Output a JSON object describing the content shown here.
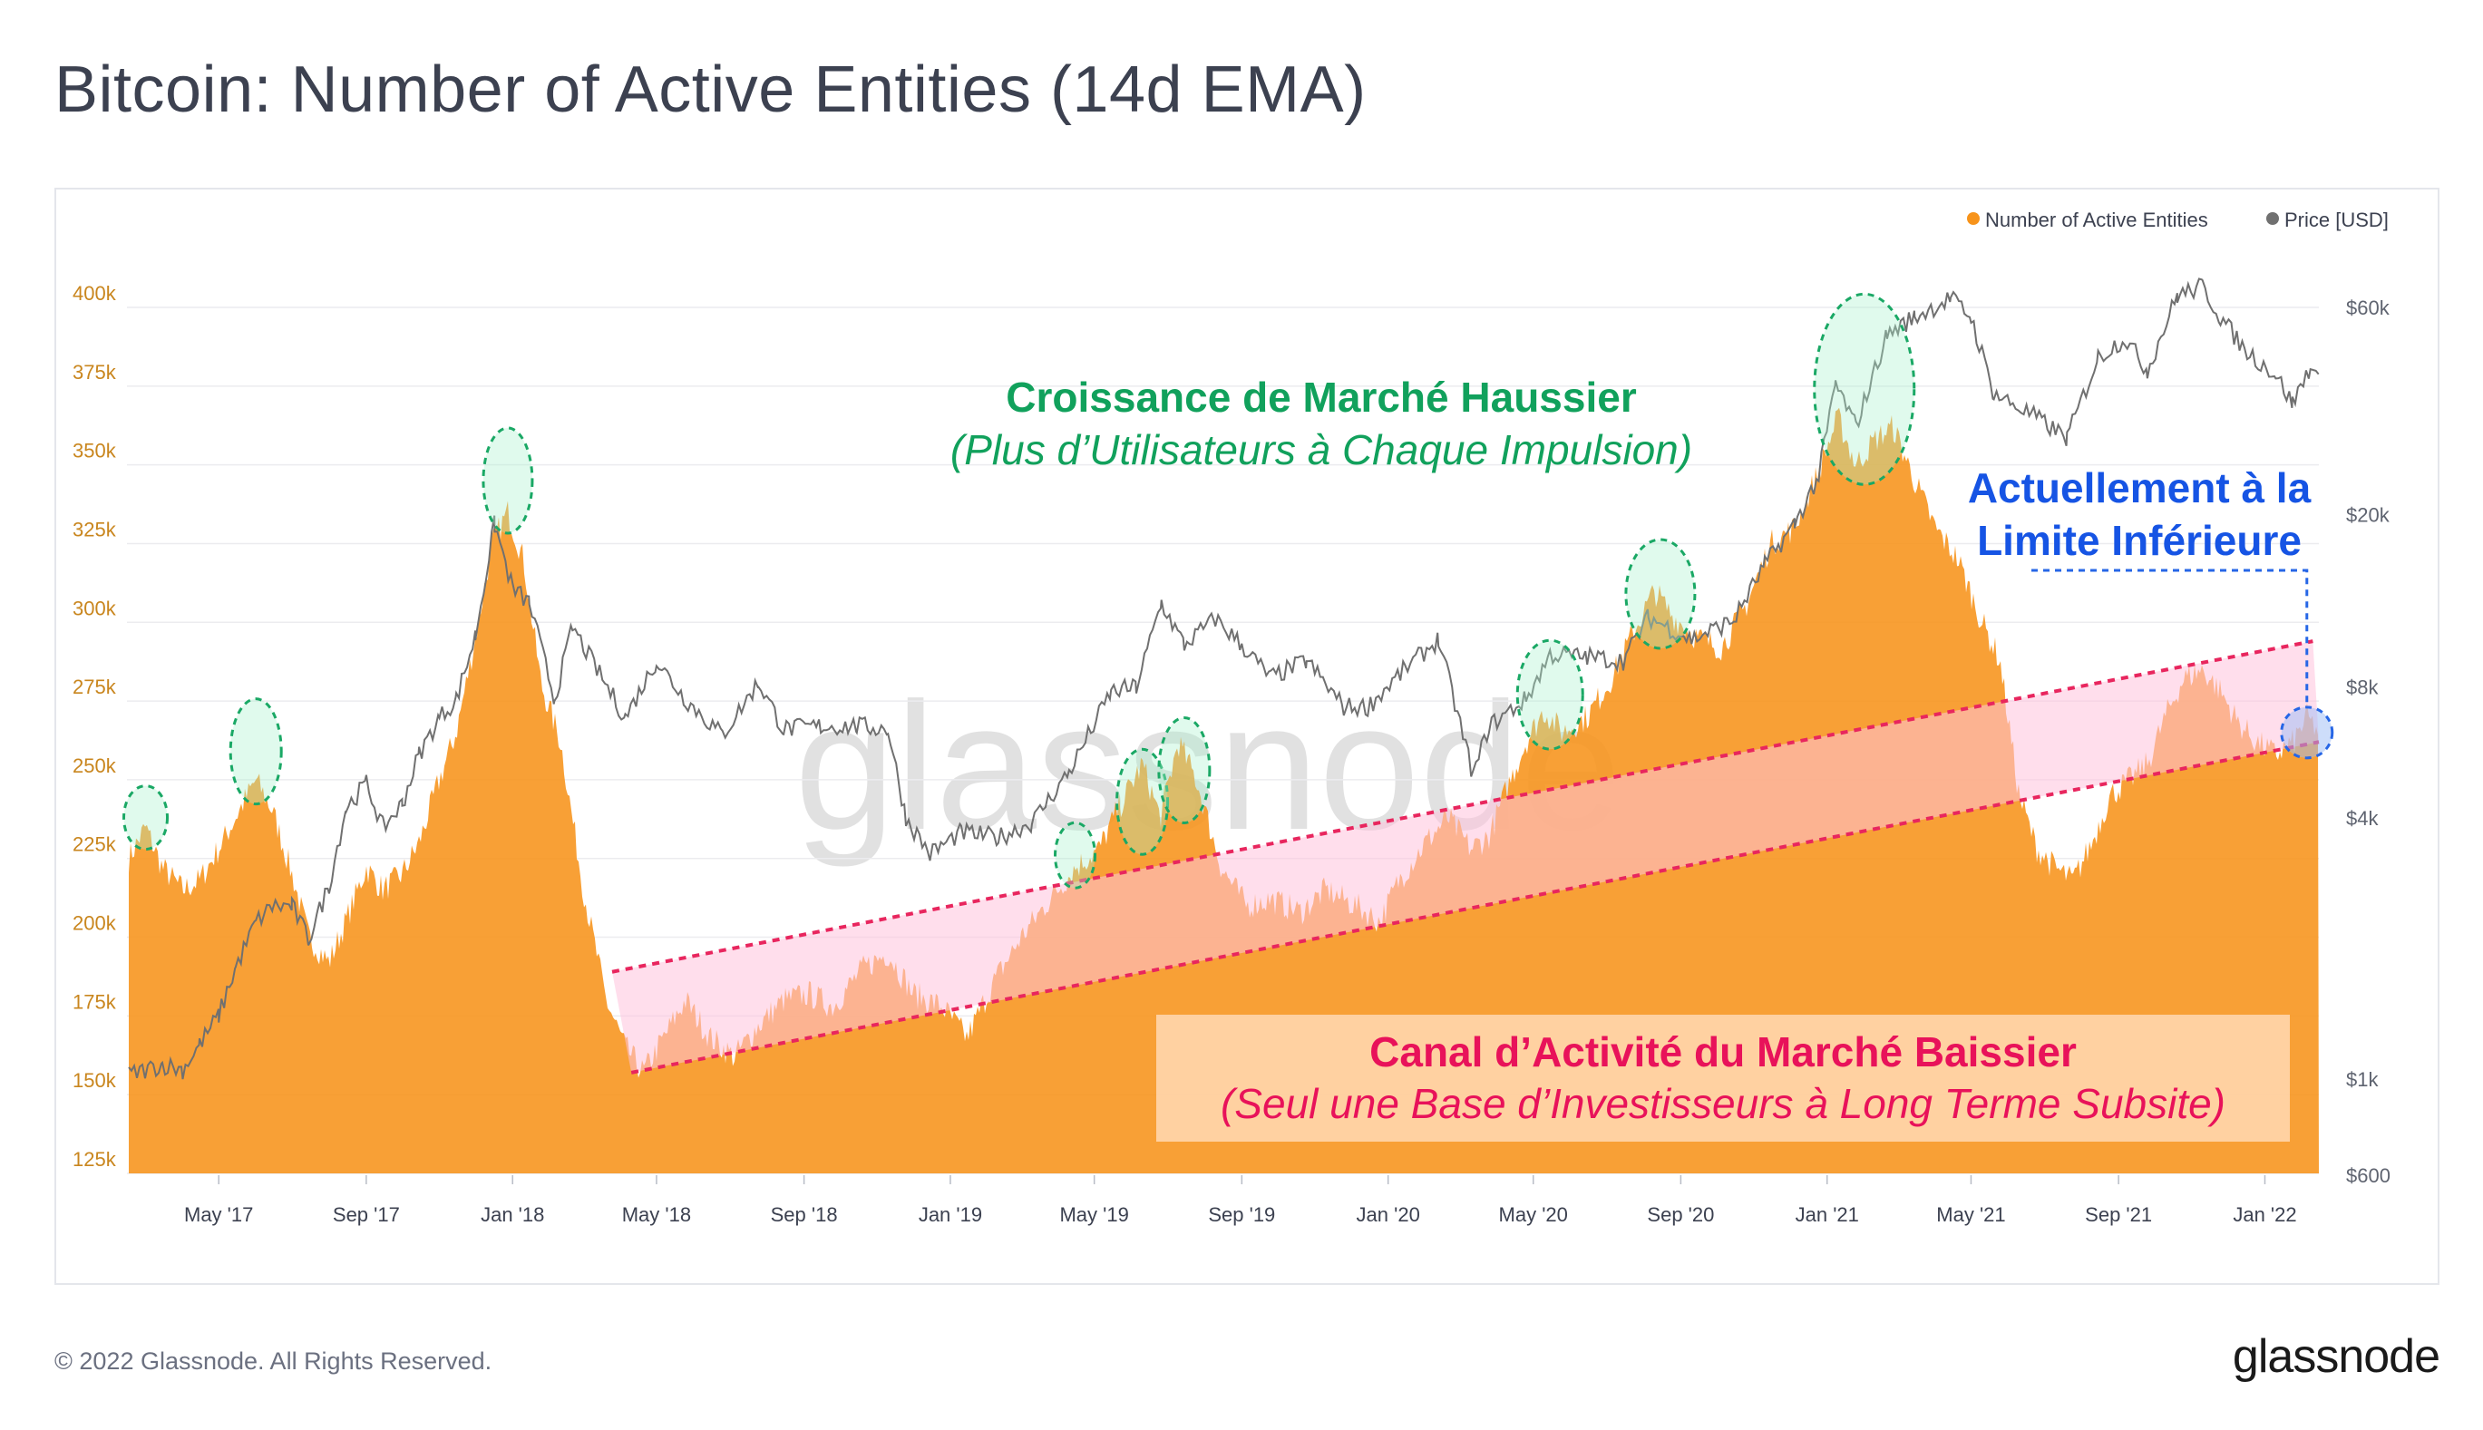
{
  "page": {
    "title": "Bitcoin: Number of Active Entities (14d EMA)",
    "copyright": "© 2022 Glassnode. All Rights Reserved.",
    "logo": "glassnode",
    "watermark": "glassnode"
  },
  "colors": {
    "entities": "#f7931a",
    "price": "#707070",
    "channel_line": "#e8265e",
    "channel_fill": "#ffc3dc",
    "bull_highlight": "#1aa865",
    "current_highlight": "#2666e6",
    "annotation_green": "#11a15c",
    "annotation_red": "#e8125a",
    "annotation_blue": "#1654e4"
  },
  "annotations": {
    "bull_title": "Croissance de Marché Haussier",
    "bull_subtitle": "(Plus d’Utilisateurs à Chaque Impulsion)",
    "current_line1": "Actuellement à la",
    "current_line2": "Limite Inférieure",
    "bear_title": "Canal d’Activité du Marché Baissier",
    "bear_subtitle": "(Seul une Base d’Investisseurs à Long Terme Subsite)"
  },
  "chart_data": {
    "type": "area",
    "x_ticks": [
      "May '17",
      "Sep '17",
      "Jan '18",
      "May '18",
      "Sep '18",
      "Jan '19",
      "May '19",
      "Sep '19",
      "Jan '20",
      "May '20",
      "Sep '20",
      "Jan '21",
      "May '21",
      "Sep '21",
      "Jan '22"
    ],
    "x_range": [
      "2017-02-15",
      "2022-02-15"
    ],
    "y_left": {
      "ticks": [
        "125k",
        "150k",
        "175k",
        "200k",
        "225k",
        "250k",
        "275k",
        "300k",
        "325k",
        "350k",
        "375k",
        "400k"
      ],
      "range": [
        125000,
        400000
      ]
    },
    "y_right": {
      "scale": "log",
      "ticks": [
        "$600",
        "$1k",
        "$4k",
        "$8k",
        "$20k",
        "$60k"
      ],
      "tick_values": [
        600,
        1000,
        4000,
        8000,
        20000,
        60000
      ]
    },
    "legend": {
      "placement": "top-right"
    },
    "series": [
      {
        "name": "Number of Active Entities",
        "axis": "left",
        "points": [
          [
            "2017-02-15",
            225000
          ],
          [
            "2017-03-01",
            235000
          ],
          [
            "2017-03-15",
            222000
          ],
          [
            "2017-04-01",
            215000
          ],
          [
            "2017-04-15",
            218000
          ],
          [
            "2017-05-01",
            228000
          ],
          [
            "2017-05-15",
            238000
          ],
          [
            "2017-06-01",
            250000
          ],
          [
            "2017-06-15",
            240000
          ],
          [
            "2017-07-01",
            220000
          ],
          [
            "2017-07-15",
            200000
          ],
          [
            "2017-08-01",
            192000
          ],
          [
            "2017-08-15",
            205000
          ],
          [
            "2017-09-01",
            222000
          ],
          [
            "2017-09-15",
            215000
          ],
          [
            "2017-10-01",
            220000
          ],
          [
            "2017-10-15",
            230000
          ],
          [
            "2017-11-01",
            250000
          ],
          [
            "2017-11-15",
            265000
          ],
          [
            "2017-12-01",
            295000
          ],
          [
            "2017-12-15",
            325000
          ],
          [
            "2017-12-28",
            335000
          ],
          [
            "2018-01-10",
            320000
          ],
          [
            "2018-01-25",
            280000
          ],
          [
            "2018-02-10",
            262000
          ],
          [
            "2018-03-01",
            215000
          ],
          [
            "2018-03-20",
            180000
          ],
          [
            "2018-04-05",
            165000
          ],
          [
            "2018-04-20",
            157000
          ],
          [
            "2018-05-10",
            170000
          ],
          [
            "2018-05-25",
            180000
          ],
          [
            "2018-06-15",
            168000
          ],
          [
            "2018-07-05",
            162000
          ],
          [
            "2018-07-25",
            172000
          ],
          [
            "2018-08-15",
            180000
          ],
          [
            "2018-09-05",
            182000
          ],
          [
            "2018-09-25",
            178000
          ],
          [
            "2018-10-20",
            190000
          ],
          [
            "2018-11-10",
            195000
          ],
          [
            "2018-12-01",
            182000
          ],
          [
            "2018-12-25",
            178000
          ],
          [
            "2019-01-15",
            168000
          ],
          [
            "2019-02-05",
            185000
          ],
          [
            "2019-03-01",
            200000
          ],
          [
            "2019-03-25",
            212000
          ],
          [
            "2019-04-15",
            222000
          ],
          [
            "2019-05-05",
            228000
          ],
          [
            "2019-05-20",
            240000
          ],
          [
            "2019-06-10",
            255000
          ],
          [
            "2019-06-25",
            238000
          ],
          [
            "2019-07-10",
            262000
          ],
          [
            "2019-07-25",
            250000
          ],
          [
            "2019-08-15",
            222000
          ],
          [
            "2019-09-05",
            210000
          ],
          [
            "2019-09-25",
            212000
          ],
          [
            "2019-10-20",
            208000
          ],
          [
            "2019-11-10",
            215000
          ],
          [
            "2019-12-05",
            210000
          ],
          [
            "2019-12-25",
            205000
          ],
          [
            "2020-01-10",
            218000
          ],
          [
            "2020-02-01",
            230000
          ],
          [
            "2020-02-20",
            238000
          ],
          [
            "2020-03-10",
            228000
          ],
          [
            "2020-03-25",
            232000
          ],
          [
            "2020-04-10",
            248000
          ],
          [
            "2020-04-25",
            262000
          ],
          [
            "2020-05-10",
            272000
          ],
          [
            "2020-05-25",
            265000
          ],
          [
            "2020-06-15",
            270000
          ],
          [
            "2020-07-05",
            282000
          ],
          [
            "2020-07-25",
            298000
          ],
          [
            "2020-08-10",
            310000
          ],
          [
            "2020-08-25",
            302000
          ],
          [
            "2020-09-15",
            295000
          ],
          [
            "2020-10-05",
            292000
          ],
          [
            "2020-10-25",
            305000
          ],
          [
            "2020-11-15",
            325000
          ],
          [
            "2020-12-05",
            330000
          ],
          [
            "2020-12-25",
            348000
          ],
          [
            "2021-01-10",
            365000
          ],
          [
            "2021-01-25",
            350000
          ],
          [
            "2021-02-10",
            358000
          ],
          [
            "2021-02-25",
            362000
          ],
          [
            "2021-03-15",
            345000
          ],
          [
            "2021-04-01",
            330000
          ],
          [
            "2021-04-20",
            320000
          ],
          [
            "2021-05-10",
            300000
          ],
          [
            "2021-05-25",
            288000
          ],
          [
            "2021-06-10",
            245000
          ],
          [
            "2021-06-25",
            228000
          ],
          [
            "2021-07-10",
            222000
          ],
          [
            "2021-07-25",
            218000
          ],
          [
            "2021-08-10",
            230000
          ],
          [
            "2021-08-25",
            245000
          ],
          [
            "2021-09-10",
            250000
          ],
          [
            "2021-09-25",
            255000
          ],
          [
            "2021-10-10",
            270000
          ],
          [
            "2021-10-25",
            282000
          ],
          [
            "2021-11-10",
            285000
          ],
          [
            "2021-11-25",
            278000
          ],
          [
            "2021-12-10",
            268000
          ],
          [
            "2021-12-25",
            262000
          ],
          [
            "2022-01-10",
            258000
          ],
          [
            "2022-01-25",
            262000
          ],
          [
            "2022-02-05",
            270000
          ],
          [
            "2022-02-15",
            265000
          ]
        ]
      },
      {
        "name": "Price [USD]",
        "axis": "right",
        "points": [
          [
            "2017-02-15",
            1020
          ],
          [
            "2017-03-15",
            1080
          ],
          [
            "2017-04-01",
            1050
          ],
          [
            "2017-04-15",
            1200
          ],
          [
            "2017-05-01",
            1400
          ],
          [
            "2017-05-15",
            1800
          ],
          [
            "2017-06-01",
            2300
          ],
          [
            "2017-06-15",
            2500
          ],
          [
            "2017-07-01",
            2500
          ],
          [
            "2017-07-15",
            2100
          ],
          [
            "2017-08-01",
            2800
          ],
          [
            "2017-08-15",
            4200
          ],
          [
            "2017-09-01",
            4800
          ],
          [
            "2017-09-15",
            3800
          ],
          [
            "2017-10-01",
            4300
          ],
          [
            "2017-10-15",
            5600
          ],
          [
            "2017-11-01",
            6800
          ],
          [
            "2017-11-15",
            7500
          ],
          [
            "2017-12-01",
            10500
          ],
          [
            "2017-12-17",
            19000
          ],
          [
            "2018-01-01",
            13500
          ],
          [
            "2018-01-15",
            12500
          ],
          [
            "2018-02-05",
            7500
          ],
          [
            "2018-02-20",
            11000
          ],
          [
            "2018-03-10",
            9000
          ],
          [
            "2018-04-05",
            6800
          ],
          [
            "2018-05-01",
            9200
          ],
          [
            "2018-05-25",
            7500
          ],
          [
            "2018-06-25",
            6200
          ],
          [
            "2018-07-25",
            8200
          ],
          [
            "2018-08-15",
            6400
          ],
          [
            "2018-09-15",
            6500
          ],
          [
            "2018-10-15",
            6500
          ],
          [
            "2018-11-10",
            6400
          ],
          [
            "2018-11-25",
            4000
          ],
          [
            "2018-12-15",
            3300
          ],
          [
            "2019-01-10",
            3700
          ],
          [
            "2019-02-10",
            3600
          ],
          [
            "2019-03-10",
            3900
          ],
          [
            "2019-04-10",
            5100
          ],
          [
            "2019-05-15",
            7800
          ],
          [
            "2019-06-05",
            8000
          ],
          [
            "2019-06-26",
            12500
          ],
          [
            "2019-07-15",
            10000
          ],
          [
            "2019-08-10",
            11500
          ],
          [
            "2019-09-01",
            10000
          ],
          [
            "2019-09-25",
            8400
          ],
          [
            "2019-10-25",
            9200
          ],
          [
            "2019-11-25",
            7200
          ],
          [
            "2019-12-15",
            7200
          ],
          [
            "2020-01-15",
            8800
          ],
          [
            "2020-02-12",
            10300
          ],
          [
            "2020-03-12",
            5000
          ],
          [
            "2020-03-25",
            6500
          ],
          [
            "2020-04-25",
            7500
          ],
          [
            "2020-05-15",
            9500
          ],
          [
            "2020-06-15",
            9400
          ],
          [
            "2020-07-15",
            9200
          ],
          [
            "2020-08-05",
            11600
          ],
          [
            "2020-09-10",
            10300
          ],
          [
            "2020-10-15",
            11400
          ],
          [
            "2020-11-10",
            15300
          ],
          [
            "2020-12-05",
            19000
          ],
          [
            "2020-12-25",
            24500
          ],
          [
            "2021-01-08",
            40000
          ],
          [
            "2021-01-25",
            32000
          ],
          [
            "2021-02-20",
            52000
          ],
          [
            "2021-03-15",
            57000
          ],
          [
            "2021-04-14",
            63000
          ],
          [
            "2021-05-01",
            57000
          ],
          [
            "2021-05-20",
            38000
          ],
          [
            "2021-06-20",
            34000
          ],
          [
            "2021-07-20",
            30000
          ],
          [
            "2021-08-15",
            46000
          ],
          [
            "2021-09-06",
            51000
          ],
          [
            "2021-09-25",
            43000
          ],
          [
            "2021-10-20",
            64000
          ],
          [
            "2021-11-10",
            67000
          ],
          [
            "2021-11-25",
            57000
          ],
          [
            "2021-12-15",
            48000
          ],
          [
            "2022-01-10",
            42000
          ],
          [
            "2022-01-24",
            36000
          ],
          [
            "2022-02-08",
            44000
          ],
          [
            "2022-02-15",
            40000
          ]
        ]
      }
    ]
  }
}
